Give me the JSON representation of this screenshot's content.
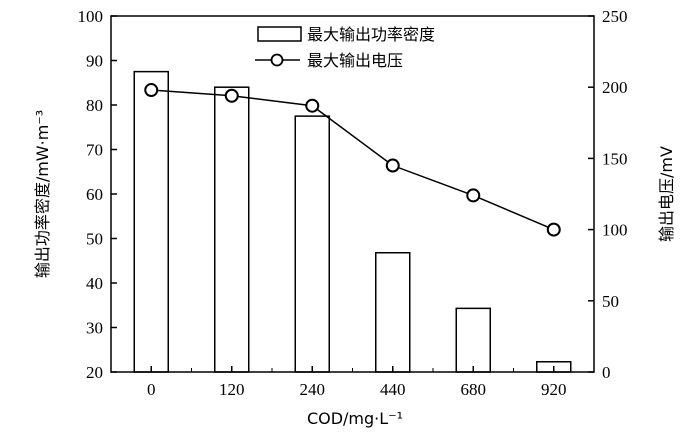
{
  "chart_data": {
    "type": "bar",
    "categories": [
      "0",
      "120",
      "240",
      "440",
      "680",
      "920"
    ],
    "series": [
      {
        "name": "最大输出功率密度",
        "type": "bar",
        "axis": "left",
        "values": [
          87.5,
          84.0,
          77.5,
          46.8,
          34.3,
          22.3
        ]
      },
      {
        "name": "最大输出电压",
        "type": "line",
        "axis": "right",
        "marker": "open-circle",
        "values": [
          198,
          194,
          187,
          145,
          124,
          100
        ]
      }
    ],
    "xlabel": "COD/mg·L⁻¹",
    "ylabel_left": "输出功率密度/mW·m⁻³",
    "ylabel_right": "输出电压/mV",
    "ylim_left": [
      20,
      100
    ],
    "yticks_left": [
      "20",
      "30",
      "40",
      "50",
      "60",
      "70",
      "80",
      "90",
      "100"
    ],
    "ylim_right": [
      0,
      250
    ],
    "yticks_right": [
      "0",
      "50",
      "100",
      "150",
      "200",
      "250"
    ],
    "grid": false,
    "legend_position": "top-center",
    "colors": {
      "axes": "#000000",
      "bar_fill": "#ffffff",
      "line": "#000000"
    }
  }
}
